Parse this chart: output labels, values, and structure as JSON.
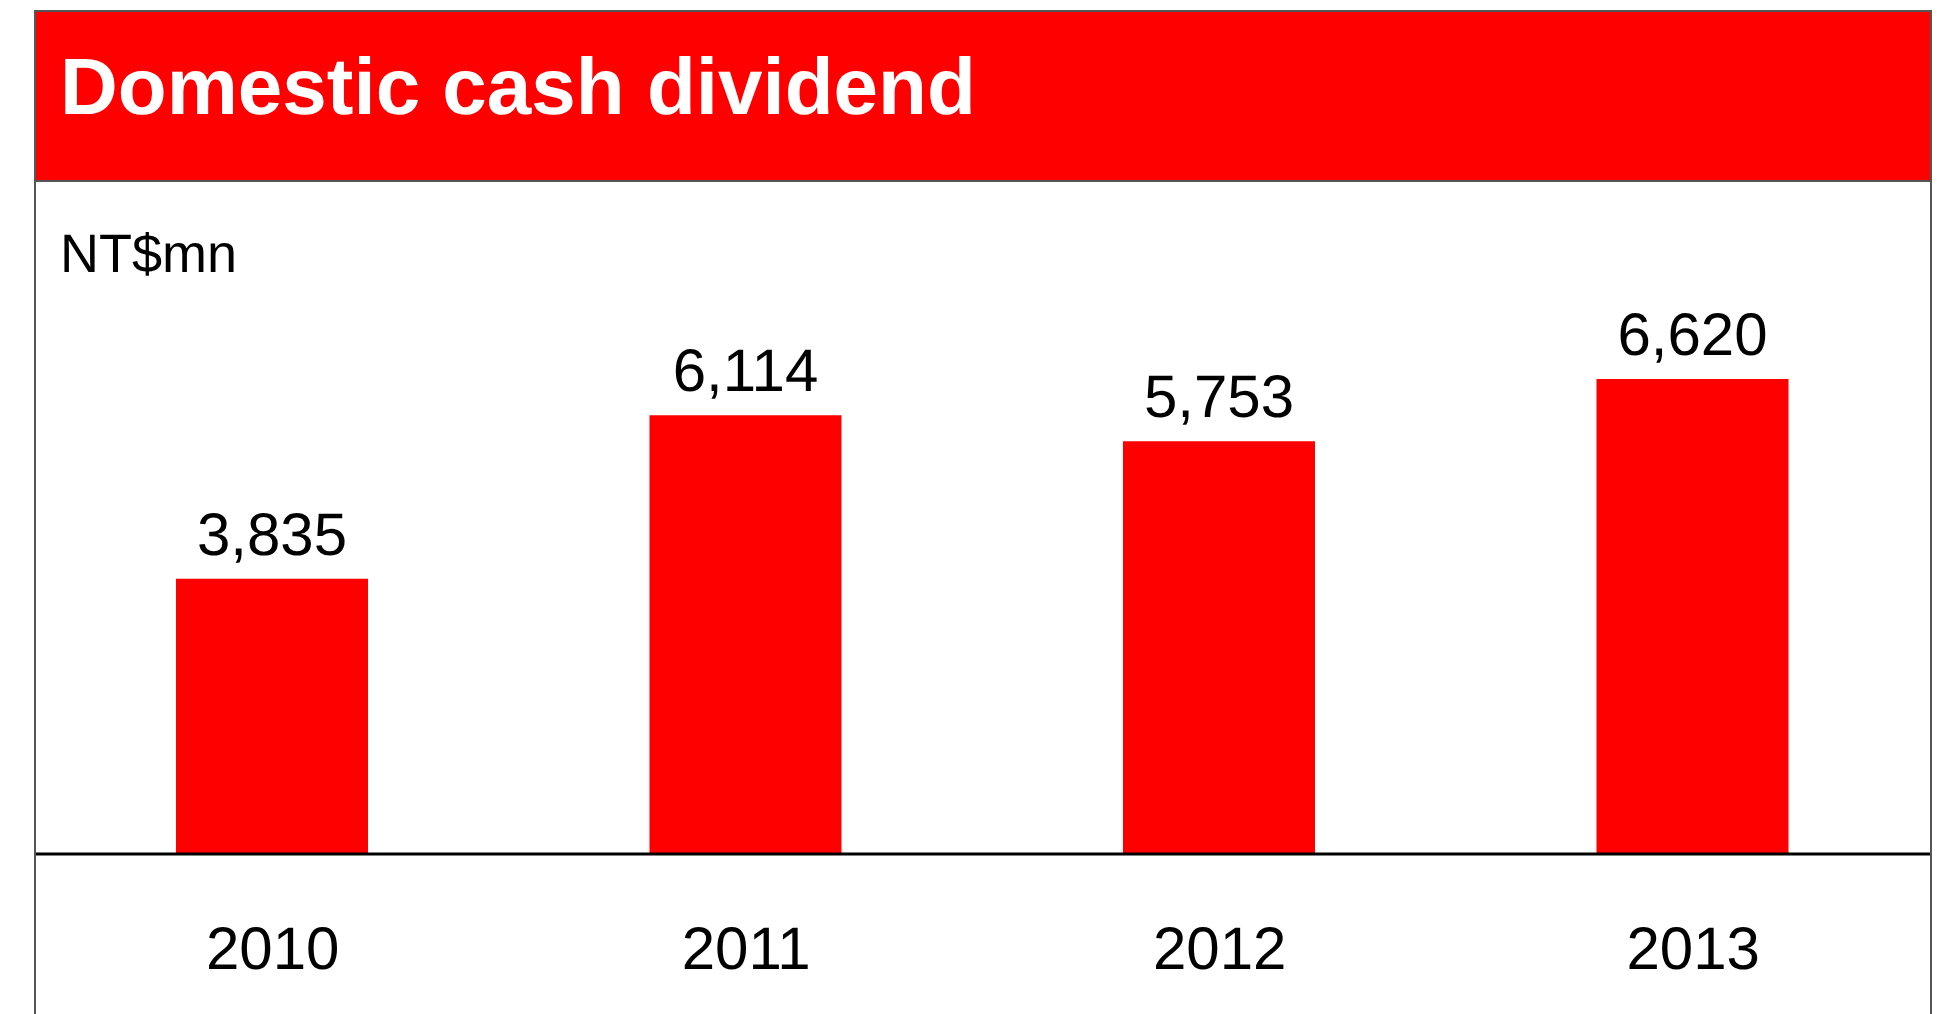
{
  "chart_data": {
    "type": "bar",
    "title": "Domestic cash dividend",
    "ylabel": "NT$mn",
    "categories": [
      "2010",
      "2011",
      "2012",
      "2013"
    ],
    "values": [
      3835,
      6114,
      5753,
      6620
    ],
    "value_labels": [
      "3,835",
      "6,114",
      "5,753",
      "6,620"
    ],
    "color": "#ff0000",
    "tick_labels": "x"
  }
}
